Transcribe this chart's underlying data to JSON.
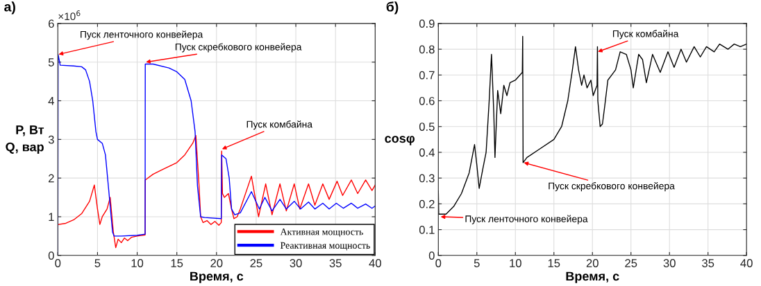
{
  "chart_data": [
    {
      "type": "line",
      "title": "а)",
      "xlabel": "Время, с",
      "ylabel": "P, Вт\nQ, вар",
      "xlim": [
        0,
        40
      ],
      "xticks": [
        0,
        5,
        10,
        15,
        20,
        25,
        30,
        35,
        40
      ],
      "ylim": [
        0,
        6
      ],
      "yticks": [
        0,
        1,
        2,
        3,
        4,
        5,
        6
      ],
      "grid": true,
      "legend": "bottom right",
      "annotations": [
        "×10$^{6}$",
        {
          "text": "Пуск ленточного конвейера",
          "x": 0.1,
          "y": 5.2
        },
        {
          "text": "Пуск скребкового конвейера",
          "x": 11.1,
          "y": 5.0
        },
        {
          "text": "Пуск комбайна",
          "x": 20.7,
          "y": 2.75
        }
      ],
      "series": [
        {
          "name": "Активная мощность",
          "color": "#ff0000",
          "x": [
            0.05,
            1,
            2,
            3,
            4,
            4.6,
            5.0,
            5.3,
            5.6,
            6.2,
            6.6,
            7.0,
            7.3,
            7.6,
            8.0,
            8.4,
            8.8,
            9.3,
            10,
            11.0,
            11.02,
            12,
            13,
            14,
            15,
            16,
            17,
            17.4,
            17.8,
            18.0,
            18.3,
            18.8,
            19.3,
            19.8,
            20.3,
            20.6,
            20.65,
            20.75,
            21,
            21.5,
            21.9,
            22.2,
            22.6,
            23,
            24.4,
            25.3,
            26.2,
            27.0,
            28.0,
            28.8,
            29.8,
            30.5,
            31.6,
            32.4,
            33.4,
            34.2,
            35.2,
            35.9,
            37,
            37.8,
            38.8,
            39.6,
            40
          ],
          "values": [
            0.8,
            0.83,
            0.92,
            1.08,
            1.4,
            1.82,
            1.2,
            0.8,
            1.0,
            1.2,
            1.5,
            0.6,
            0.2,
            0.42,
            0.33,
            0.45,
            0.38,
            0.47,
            0.5,
            0.53,
            1.95,
            2.1,
            2.2,
            2.3,
            2.4,
            2.6,
            2.9,
            3.1,
            1.8,
            1.0,
            0.85,
            0.9,
            0.8,
            0.88,
            0.78,
            0.85,
            2.7,
            1.6,
            1.5,
            1.6,
            1.2,
            0.95,
            1.0,
            1.2,
            2.05,
            1.0,
            1.85,
            1.05,
            1.85,
            1.15,
            1.85,
            1.2,
            1.85,
            1.3,
            1.85,
            1.45,
            1.92,
            1.55,
            1.95,
            1.6,
            1.95,
            1.68,
            1.82
          ]
        },
        {
          "name": "Реактивная мощность",
          "color": "#0000ff",
          "x": [
            0,
            0.03,
            0.3,
            2,
            3,
            3.5,
            4,
            4.4,
            4.8,
            5.0,
            5.6,
            6.0,
            6.5,
            6.9,
            7.1,
            8,
            10,
            11.0,
            11.02,
            12,
            14,
            15,
            16,
            16.8,
            17.3,
            17.6,
            18.0,
            18.5,
            20.6,
            20.65,
            21.2,
            21.6,
            21.9,
            22.3,
            23,
            24.4,
            25.4,
            26.1,
            27,
            28,
            28.8,
            29.8,
            30.6,
            31.6,
            32.4,
            33.4,
            34.2,
            35.1,
            36,
            37,
            37.8,
            38.8,
            39.6,
            40
          ],
          "values": [
            0,
            5.2,
            4.92,
            4.9,
            4.88,
            4.8,
            4.5,
            4.0,
            3.2,
            3.0,
            2.9,
            2.6,
            1.5,
            0.6,
            0.5,
            0.5,
            0.52,
            0.55,
            4.95,
            4.95,
            4.85,
            4.75,
            4.55,
            4.0,
            3.2,
            1.8,
            1.0,
            0.98,
            0.95,
            2.6,
            2.5,
            2.0,
            1.2,
            1.05,
            1.1,
            1.65,
            1.2,
            1.5,
            1.15,
            1.45,
            1.2,
            1.4,
            1.2,
            1.38,
            1.2,
            1.35,
            1.2,
            1.35,
            1.22,
            1.35,
            1.22,
            1.33,
            1.22,
            1.28
          ]
        }
      ]
    },
    {
      "type": "line",
      "title": "б)",
      "xlabel": "Время, с",
      "ylabel": "cosφ",
      "xlim": [
        0,
        40
      ],
      "xticks": [
        0,
        5,
        10,
        15,
        20,
        25,
        30,
        35,
        40
      ],
      "ylim": [
        0,
        0.9
      ],
      "yticks": [
        0,
        0.1,
        0.2,
        0.3,
        0.4,
        0.5,
        0.6,
        0.7,
        0.8,
        0.9
      ],
      "grid": true,
      "annotations": [
        {
          "text": "Пуск ленточного конвейера",
          "x": 0.3,
          "y": 0.15
        },
        {
          "text": "Пуск скребкового конвейера",
          "x": 11.1,
          "y": 0.36
        },
        {
          "text": "Пуск комбайна",
          "x": 20.7,
          "y": 0.79
        }
      ],
      "series": [
        {
          "color": "#000000",
          "x": [
            0,
            0.05,
            1,
            2,
            3,
            4,
            4.7,
            5.0,
            5.3,
            5.8,
            6.2,
            6.6,
            6.9,
            7.2,
            7.35,
            7.7,
            8.1,
            8.5,
            8.9,
            9.3,
            10,
            10.9,
            10.95,
            11.0,
            11.5,
            13,
            15,
            16,
            16.8,
            17.4,
            17.8,
            18.2,
            18.6,
            18.9,
            19.3,
            19.8,
            20.1,
            20.6,
            20.65,
            20.7,
            21.0,
            21.3,
            21.6,
            22.0,
            22.5,
            23.0,
            23.6,
            24.4,
            25.0,
            25.3,
            26.0,
            26.5,
            27.0,
            27.8,
            28.8,
            29.8,
            30.6,
            31.5,
            32.2,
            33.2,
            34.0,
            34.8,
            35.8,
            36.5,
            37.6,
            38.4,
            39.2,
            40
          ],
          "values": [
            0.25,
            0.16,
            0.16,
            0.19,
            0.24,
            0.32,
            0.43,
            0.35,
            0.26,
            0.34,
            0.4,
            0.6,
            0.78,
            0.55,
            0.38,
            0.64,
            0.55,
            0.66,
            0.62,
            0.67,
            0.68,
            0.71,
            0.85,
            0.36,
            0.38,
            0.41,
            0.45,
            0.5,
            0.6,
            0.72,
            0.81,
            0.72,
            0.66,
            0.7,
            0.65,
            0.68,
            0.62,
            0.66,
            0.81,
            0.6,
            0.5,
            0.51,
            0.58,
            0.68,
            0.7,
            0.72,
            0.79,
            0.78,
            0.72,
            0.65,
            0.78,
            0.76,
            0.67,
            0.78,
            0.71,
            0.79,
            0.73,
            0.8,
            0.75,
            0.81,
            0.77,
            0.81,
            0.79,
            0.82,
            0.8,
            0.82,
            0.81,
            0.82
          ]
        }
      ]
    }
  ]
}
